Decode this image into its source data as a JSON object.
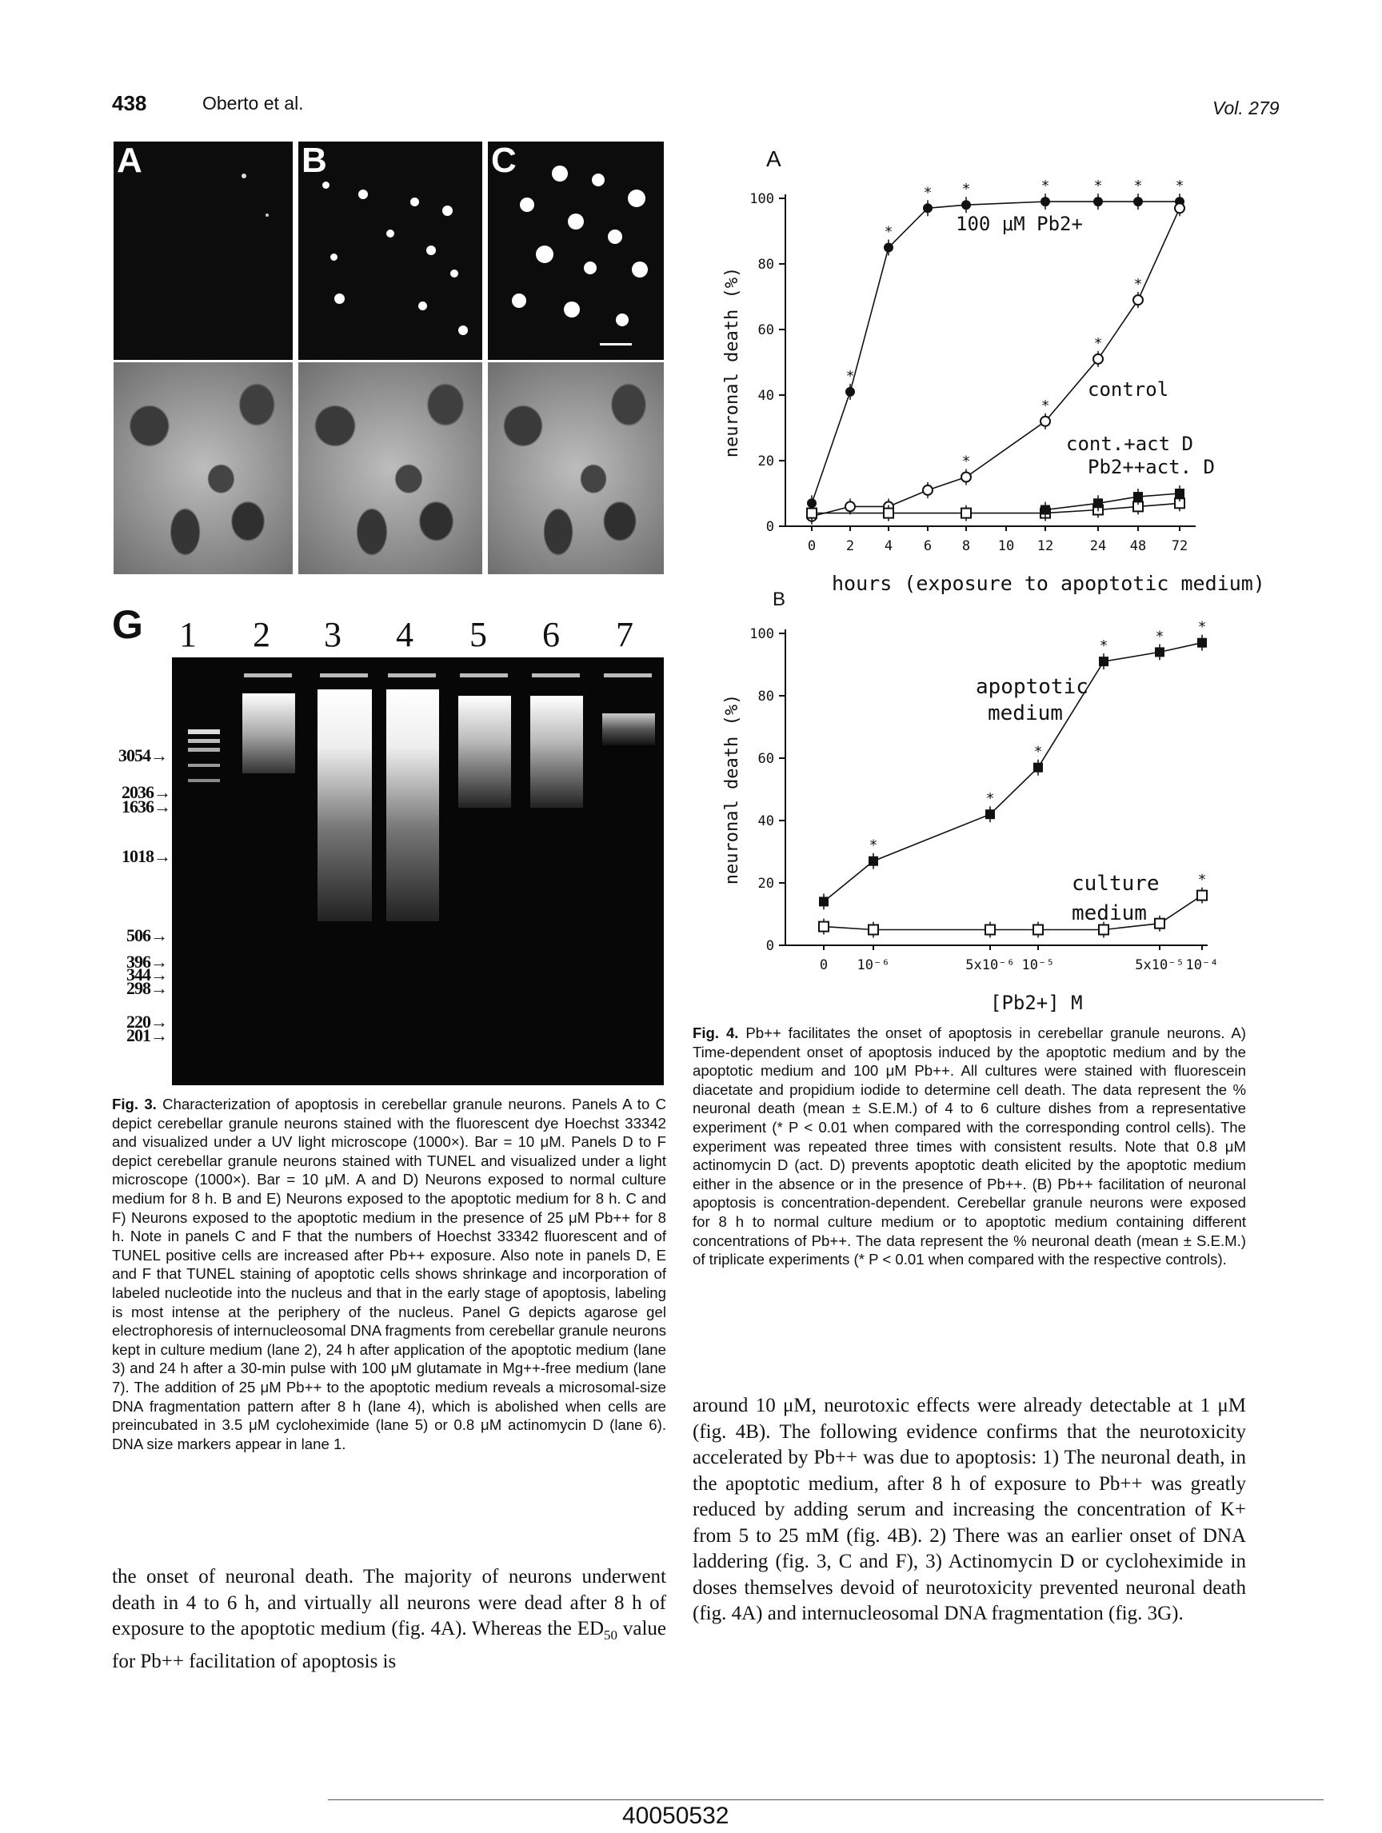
{
  "header": {
    "page_number": "438",
    "authors": "Oberto et al.",
    "volume": "Vol. 279"
  },
  "figure3": {
    "panel_labels": [
      "A",
      "B",
      "C"
    ],
    "gel": {
      "label": "G",
      "lanes": [
        "1",
        "2",
        "3",
        "4",
        "5",
        "6",
        "7"
      ],
      "markers": [
        "3054",
        "2036",
        "1636",
        "1018",
        "506",
        "396",
        "344",
        "298",
        "220",
        "201"
      ]
    },
    "caption_label": "Fig. 3.",
    "caption": "Characterization of apoptosis in cerebellar granule neurons. Panels A to C depict cerebellar granule neurons stained with the fluorescent dye Hoechst 33342 and visualized under a UV light microscope (1000×). Bar = 10 μM. Panels D to F depict cerebellar granule neurons stained with TUNEL and visualized under a light microscope (1000×). Bar = 10 μM. A and D) Neurons exposed to normal culture medium for 8 h. B and E) Neurons exposed to the apoptotic medium for 8 h. C and F) Neurons exposed to the apoptotic medium in the presence of 25 μM Pb++ for 8 h. Note in panels C and F that the numbers of Hoechst 33342 fluorescent and of TUNEL positive cells are increased after Pb++ exposure. Also note in panels D, E and F that TUNEL staining of apoptotic cells shows shrinkage and incorporation of labeled nucleotide into the nucleus and that in the early stage of apoptosis, labeling is most intense at the periphery of the nucleus. Panel G depicts agarose gel electrophoresis of internucleosomal DNA fragments from cerebellar granule neurons kept in culture medium (lane 2), 24 h after application of the apoptotic medium (lane 3) and 24 h after a 30-min pulse with 100 μM glutamate in Mg++-free medium (lane 7). The addition of 25 μM Pb++ to the apoptotic medium reveals a microsomal-size DNA fragmentation pattern after 8 h (lane 4), which is abolished when cells are preincubated in 3.5 μM cycloheximide (lane 5) or 0.8 μM actinomycin D (lane 6). DNA size markers appear in lane 1."
  },
  "figure4": {
    "caption_label": "Fig. 4.",
    "caption": "Pb++ facilitates the onset of apoptosis in cerebellar granule neurons. A) Time-dependent onset of apoptosis induced by the apoptotic medium and by the apoptotic medium and 100 μM Pb++. All cultures were stained with fluorescein diacetate and propidium iodide to determine cell death. The data represent the % neuronal death (mean ± S.E.M.) of 4 to 6 culture dishes from a representative experiment (* P < 0.01 when compared with the corresponding control cells). The experiment was repeated three times with consistent results. Note that 0.8 μM actinomycin D (act. D) prevents apoptotic death elicited by the apoptotic medium either in the absence or in the presence of Pb++. (B) Pb++ facilitation of neuronal apoptosis is concentration-dependent. Cerebellar granule neurons were exposed for 8 h to normal culture medium or to apoptotic medium containing different concentrations of Pb++. The data represent the % neuronal death (mean ± S.E.M.) of triplicate experiments (* P < 0.01 when compared with the respective controls)."
  },
  "chart_data": [
    {
      "type": "line",
      "panel": "A",
      "xlabel": "hours (exposure to apoptotic medium)",
      "ylabel": "neuronal death (%)",
      "ylim": [
        0,
        100
      ],
      "yticks": [
        0,
        20,
        40,
        60,
        80,
        100
      ],
      "xticks": [
        "0",
        "2",
        "4",
        "6",
        "8",
        "10",
        "12",
        "24",
        "48",
        "72"
      ],
      "annotations": [
        "100 μM Pb2+",
        "control",
        "cont.+act D",
        "Pb2++act. D"
      ],
      "series": [
        {
          "name": "100 μM Pb2+",
          "marker": "filled-circle",
          "x": [
            "0",
            "2",
            "4",
            "6",
            "8",
            "12",
            "24",
            "48",
            "72"
          ],
          "y": [
            7,
            41,
            85,
            97,
            98,
            99,
            99,
            99,
            99
          ],
          "sig": [
            false,
            true,
            true,
            true,
            true,
            true,
            true,
            true,
            true
          ]
        },
        {
          "name": "control",
          "marker": "open-circle",
          "x": [
            "0",
            "2",
            "4",
            "6",
            "8",
            "12",
            "24",
            "48",
            "72"
          ],
          "y": [
            3,
            6,
            6,
            11,
            15,
            32,
            51,
            69,
            97
          ],
          "sig": [
            false,
            false,
            false,
            false,
            true,
            true,
            true,
            true,
            false
          ]
        },
        {
          "name": "cont.+act D",
          "marker": "open-square",
          "x": [
            "0",
            "4",
            "8",
            "12",
            "24",
            "48",
            "72"
          ],
          "y": [
            4,
            4,
            4,
            4,
            5,
            6,
            7
          ]
        },
        {
          "name": "Pb2++act. D",
          "marker": "filled-square",
          "x": [
            "12",
            "24",
            "48",
            "72"
          ],
          "y": [
            5,
            7,
            9,
            10
          ]
        }
      ]
    },
    {
      "type": "line",
      "panel": "B",
      "xlabel": "[Pb2+] M",
      "ylabel": "neuronal death (%)",
      "ylim": [
        0,
        100
      ],
      "yticks": [
        0,
        20,
        40,
        60,
        80,
        100
      ],
      "xticks": [
        "0",
        "10⁻⁶",
        "5x10⁻⁶",
        "10⁻⁵",
        "5x10⁻⁵",
        "10⁻⁴"
      ],
      "annotations": [
        "apoptotic medium",
        "culture medium"
      ],
      "series": [
        {
          "name": "apoptotic medium",
          "marker": "filled-square",
          "x": [
            "0",
            "1e-6",
            "5e-6",
            "1e-5",
            "2e-5",
            "5e-5",
            "1e-4"
          ],
          "y": [
            14,
            27,
            42,
            57,
            91,
            94,
            97
          ],
          "sig": [
            false,
            true,
            true,
            true,
            true,
            true,
            true
          ]
        },
        {
          "name": "culture medium",
          "marker": "open-square",
          "x": [
            "0",
            "1e-6",
            "5e-6",
            "1e-5",
            "2e-5",
            "5e-5",
            "1e-4"
          ],
          "y": [
            6,
            5,
            5,
            5,
            5,
            7,
            16
          ],
          "sig": [
            false,
            false,
            false,
            false,
            false,
            false,
            true
          ]
        }
      ]
    }
  ],
  "text_left": "the onset of neuronal death. The majority of neurons underwent death in 4 to 6 h, and virtually all neurons were dead after 8 h of exposure to the apoptotic medium (fig. 4A). Whereas the ED50 value for Pb++ facilitation of apoptosis is",
  "text_right": "around 10 μM, neurotoxic effects were already detectable at 1 μM (fig. 4B). The following evidence confirms that the neurotoxicity accelerated by Pb++ was due to apoptosis: 1) The neuronal death, in the apoptotic medium, after 8 h of exposure to Pb++ was greatly reduced by adding serum and increasing the concentration of K+ from 5 to 25 mM (fig. 4B). 2) There was an earlier onset of DNA laddering (fig. 3, C and F), 3) Actinomycin D or cycloheximide in doses themselves devoid of neurotoxicity prevented neuronal death (fig. 4A) and internucleosomal DNA fragmentation (fig. 3G).",
  "footer": {
    "doc_id": "40050532"
  }
}
